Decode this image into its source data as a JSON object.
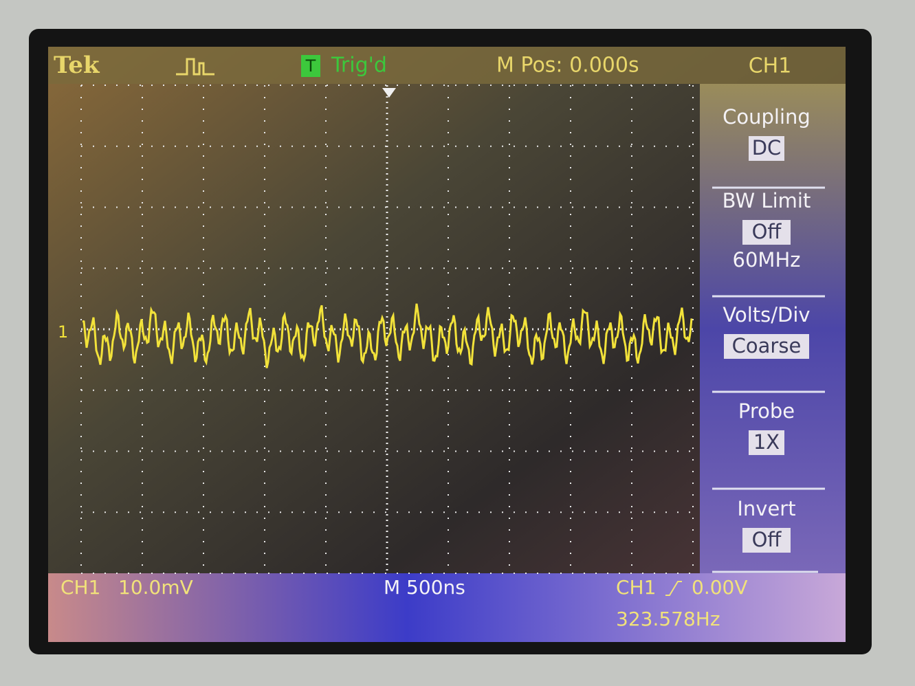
{
  "header": {
    "brand": "Tek",
    "trigger_icon": "T",
    "trigger_status": "Trig'd",
    "position": "M Pos: 0.000s",
    "channel": "CH1"
  },
  "channel_marker": "1",
  "menu": [
    {
      "label": "Coupling",
      "setting": "DC"
    },
    {
      "label": "BW Limit",
      "setting": "Off",
      "note": "60MHz"
    },
    {
      "label": "Volts/Div",
      "setting": "Coarse"
    },
    {
      "label": "Probe",
      "setting": "1X"
    },
    {
      "label": "Invert",
      "setting": "Off"
    }
  ],
  "footer": {
    "channel": "CH1",
    "scale": "10.0mV",
    "timebase": "M 500ns",
    "trigger_channel": "CH1",
    "trigger_level": "0.00V",
    "frequency": "323.578Hz"
  }
}
